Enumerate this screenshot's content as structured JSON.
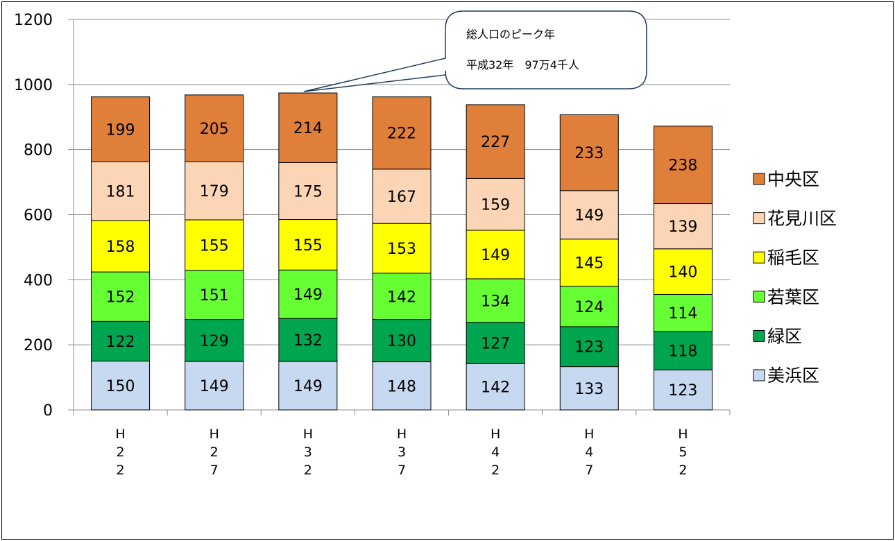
{
  "chart_data": {
    "type": "bar",
    "stacked": true,
    "title": "",
    "xlabel": "",
    "ylabel": "",
    "ylim": [
      0,
      1200
    ],
    "yticks": [
      0,
      200,
      400,
      600,
      800,
      1000,
      1200
    ],
    "grid": true,
    "legend_position": "right",
    "categories": [
      "H22",
      "H27",
      "H32",
      "H37",
      "H42",
      "H47",
      "H52"
    ],
    "series": [
      {
        "name": "美浜区",
        "color": "#c6d9f1",
        "values": [
          150,
          149,
          149,
          148,
          142,
          133,
          123
        ]
      },
      {
        "name": "緑区",
        "color": "#00a64f",
        "values": [
          122,
          129,
          132,
          130,
          127,
          123,
          118
        ]
      },
      {
        "name": "若葉区",
        "color": "#66ff33",
        "values": [
          152,
          151,
          149,
          142,
          134,
          124,
          114
        ]
      },
      {
        "name": "稲毛区",
        "color": "#ffff00",
        "values": [
          158,
          155,
          155,
          153,
          149,
          145,
          140
        ]
      },
      {
        "name": "花見川区",
        "color": "#fbd5b5",
        "values": [
          181,
          179,
          175,
          167,
          159,
          149,
          139
        ]
      },
      {
        "name": "中央区",
        "color": "#e07f39",
        "values": [
          199,
          205,
          214,
          222,
          227,
          233,
          238
        ]
      }
    ],
    "annotation": {
      "lines": [
        "総人口のピーク年",
        "平成32年　97万4千人"
      ],
      "target_category": "H32"
    }
  }
}
